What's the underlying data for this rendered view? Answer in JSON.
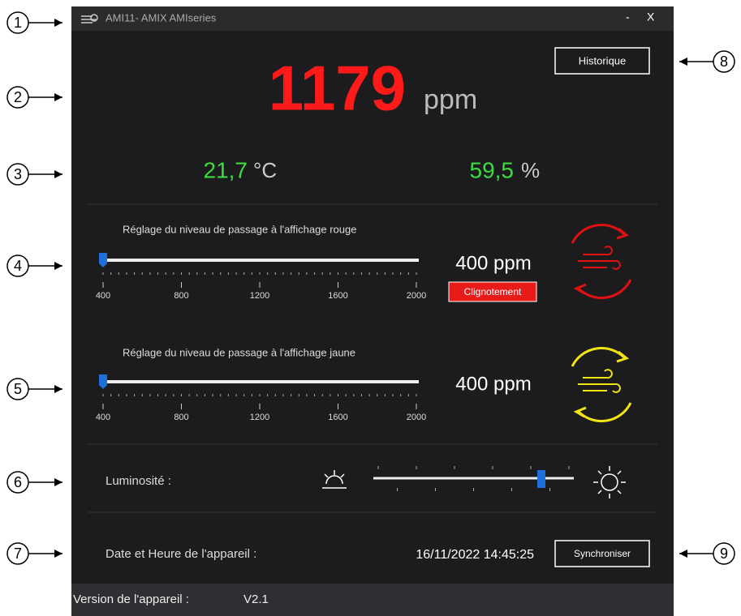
{
  "window": {
    "title": "AMI11- AMIX AMIseries",
    "minimize": "-",
    "close": "X"
  },
  "reading": {
    "co2": "1179",
    "co2_unit": "ppm",
    "temperature": "21,7",
    "temperature_unit": "°C",
    "humidity": "59,5",
    "humidity_unit": "%"
  },
  "history_button": "Historique",
  "red_slider": {
    "label": "Réglage du niveau de passage à l'affichage rouge",
    "ticks": [
      400,
      800,
      1200,
      1600,
      2000
    ],
    "readout": "400 ppm",
    "blink_button": "Clignotement"
  },
  "yellow_slider": {
    "label": "Réglage du niveau de passage à l'affichage jaune",
    "ticks": [
      400,
      800,
      1200,
      1600,
      2000
    ],
    "readout": "400 ppm"
  },
  "brightness": {
    "label": "Luminosité :"
  },
  "datetime": {
    "label": "Date et Heure de l'appareil :",
    "value": "16/11/2022 14:45:25",
    "sync_button": "Synchroniser"
  },
  "footer": {
    "label": "Version de l'appareil :",
    "version": "V2.1"
  },
  "callouts": [
    "1",
    "2",
    "3",
    "4",
    "5",
    "6",
    "7",
    "8",
    "9"
  ]
}
